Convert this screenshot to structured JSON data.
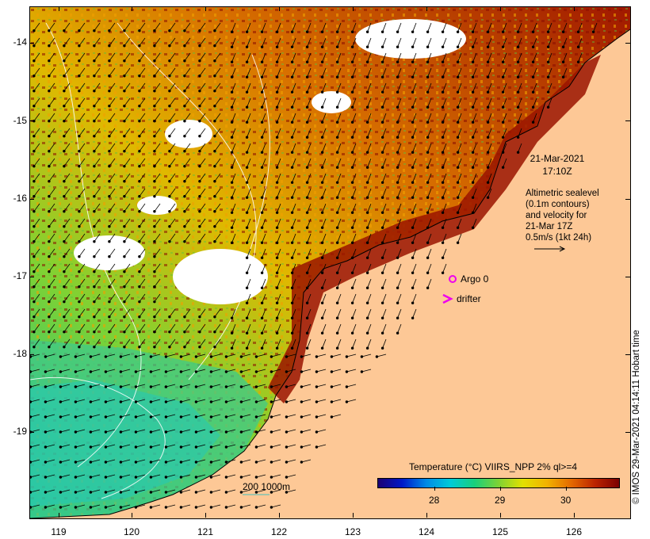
{
  "map": {
    "lat_ticks": [
      "-14",
      "-15",
      "-16",
      "-17",
      "-18",
      "-19"
    ],
    "lon_ticks": [
      "119",
      "120",
      "121",
      "122",
      "123",
      "124",
      "125",
      "126"
    ]
  },
  "info": {
    "date": "21-Mar-2021",
    "time": "17:10Z",
    "line1": "Altimetric sealevel",
    "line2": "(0.1m contours)",
    "line3": "and velocity for",
    "line4": "21-Mar 17Z",
    "line5": "0.5m/s (1kt 24h)"
  },
  "markers": {
    "argo_label": "Argo 0",
    "drifter_label": "drifter",
    "argo_color": "#ee00ee",
    "drifter_color": "#ee00ee"
  },
  "depth_legend": {
    "label": "200  1000m"
  },
  "colorbar": {
    "title": "Temperature (°C) VIIRS_NPP 2% ql>=4",
    "ticks": [
      "28",
      "29",
      "30"
    ]
  },
  "credit": "© IMOS 29-Mar-2021 04:14:11 Hobart time",
  "colors": {
    "land": "#fdc896",
    "cold": "#1c0074",
    "warm": "#7b0000"
  }
}
